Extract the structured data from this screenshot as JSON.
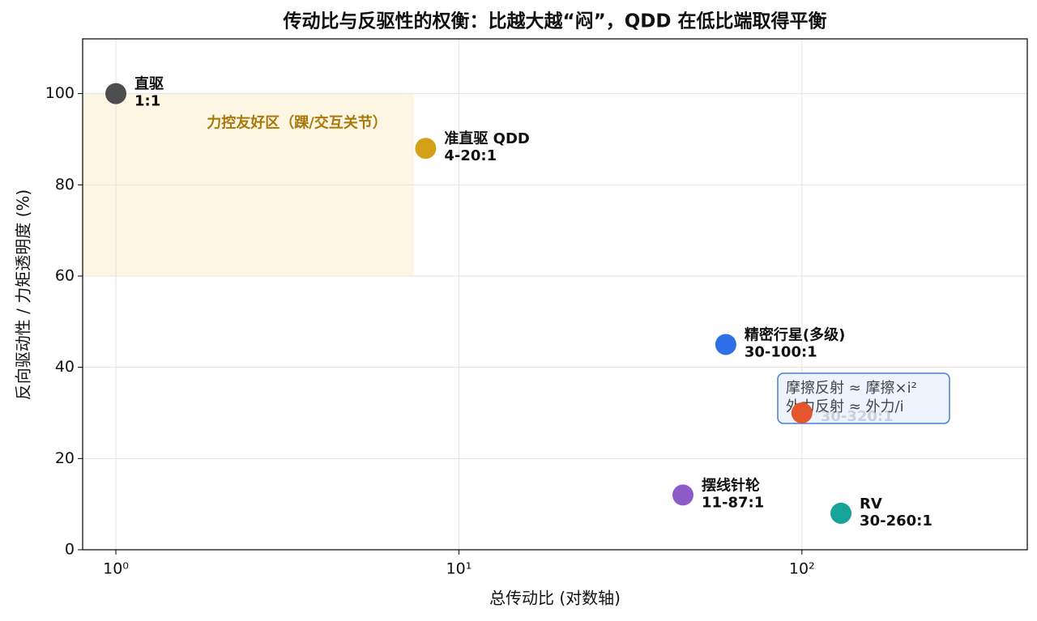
{
  "chart_data": {
    "type": "scatter",
    "title": "传动比与反驱性的权衡：比越大越“闷”，QDD 在低比端取得平衡",
    "xlabel": "总传动比 (对数轴)",
    "ylabel": "反向驱动性 / 力矩透明度 (%)",
    "xscale": "log",
    "xlim": [
      0.8,
      454
    ],
    "ylim": [
      0,
      112
    ],
    "xticks": [
      {
        "value": 1,
        "label": "10⁰"
      },
      {
        "value": 10,
        "label": "10¹"
      },
      {
        "value": 100,
        "label": "10²"
      }
    ],
    "yticks": [
      0,
      20,
      40,
      60,
      80,
      100
    ],
    "grid": true,
    "region": {
      "label": "力控友好区（踝/交互关节）",
      "x": [
        0.8,
        7.4
      ],
      "y": [
        60,
        100
      ],
      "color": "#fdf6e3",
      "label_color": "#a8780a"
    },
    "points": [
      {
        "name": "直驱",
        "range": "1:1",
        "x": 1,
        "y": 100,
        "color": "#4d4d4d"
      },
      {
        "name": "准直驱 QDD",
        "range": "4-20:1",
        "x": 8,
        "y": 88,
        "color": "#d4a017"
      },
      {
        "name": "精密行星(多级)",
        "range": "30-100:1",
        "x": 60,
        "y": 45,
        "color": "#2f6fe8"
      },
      {
        "range": "30-320:1",
        "x": 100,
        "y": 30,
        "color": "#e4572e"
      },
      {
        "name": "摆线针轮",
        "range": "11-87:1",
        "x": 45,
        "y": 12,
        "color": "#8e5cc8"
      },
      {
        "name": "RV",
        "range": "30-260:1",
        "x": 130,
        "y": 8,
        "color": "#17a398"
      }
    ],
    "annotation": [
      "摩擦反射 ≈ 摩擦×i²",
      "外力反射 ≈ 外力/i"
    ]
  }
}
